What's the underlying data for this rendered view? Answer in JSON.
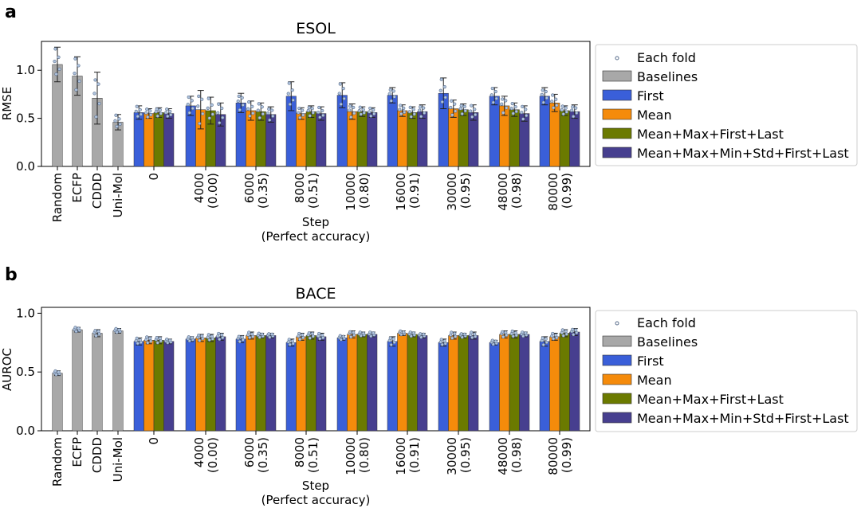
{
  "colors": {
    "baselines": "#a8a8a8",
    "first": "#3a5fd9",
    "mean": "#f58b0b",
    "mmfl": "#6b7a00",
    "all": "#473f8f",
    "dots": "#b0c4de"
  },
  "legend": {
    "each_fold": "Each fold",
    "baselines": "Baselines",
    "first": "First",
    "mean": "Mean",
    "mmfl": "Mean+Max+First+Last",
    "all": "Mean+Max+Min+Std+First+Last"
  },
  "chart_data": [
    {
      "panel": "a",
      "type": "bar",
      "title": "ESOL",
      "ylabel": "RMSE",
      "xlabel": "Step",
      "xlabel2": "(Perfect accuracy)",
      "ylim": [
        0,
        1.3
      ],
      "yticks": [
        "0.0",
        "0.5",
        "1.0"
      ],
      "ytick_values": [
        0,
        0.5,
        1.0
      ],
      "baselines": [
        {
          "label": "Random",
          "value": 1.06,
          "err": 0.18
        },
        {
          "label": "ECFP",
          "value": 0.94,
          "err": 0.2
        },
        {
          "label": "CDDD",
          "value": 0.71,
          "err": 0.27
        },
        {
          "label": "Uni-Mol",
          "value": 0.46,
          "err": 0.08
        }
      ],
      "steps": [
        "0",
        "4000",
        "6000",
        "8000",
        "10000",
        "16000",
        "30000",
        "48000",
        "80000"
      ],
      "accuracies": [
        "",
        "(0.00)",
        "(0.35)",
        "(0.51)",
        "(0.80)",
        "(0.91)",
        "(0.95)",
        "(0.98)",
        "(0.99)"
      ],
      "series": [
        {
          "name": "First",
          "values": [
            0.56,
            0.63,
            0.66,
            0.73,
            0.74,
            0.74,
            0.76,
            0.73,
            0.73
          ],
          "errors": [
            0.07,
            0.1,
            0.1,
            0.15,
            0.13,
            0.08,
            0.16,
            0.09,
            0.09
          ]
        },
        {
          "name": "Mean",
          "values": [
            0.55,
            0.59,
            0.58,
            0.55,
            0.57,
            0.58,
            0.6,
            0.63,
            0.66
          ],
          "errors": [
            0.05,
            0.2,
            0.1,
            0.06,
            0.08,
            0.06,
            0.09,
            0.1,
            0.09
          ]
        },
        {
          "name": "Mean+Max+First+Last",
          "values": [
            0.56,
            0.58,
            0.57,
            0.57,
            0.57,
            0.56,
            0.59,
            0.59,
            0.58
          ],
          "errors": [
            0.05,
            0.14,
            0.09,
            0.06,
            0.05,
            0.06,
            0.06,
            0.07,
            0.05
          ]
        },
        {
          "name": "Mean+Max+Min+Std+First+Last",
          "values": [
            0.55,
            0.54,
            0.54,
            0.55,
            0.56,
            0.57,
            0.56,
            0.55,
            0.57
          ],
          "errors": [
            0.05,
            0.12,
            0.08,
            0.07,
            0.05,
            0.07,
            0.08,
            0.08,
            0.07
          ]
        }
      ]
    },
    {
      "panel": "b",
      "type": "bar",
      "title": "BACE",
      "ylabel": "AUROC",
      "xlabel": "Step",
      "xlabel2": "(Perfect accuracy)",
      "ylim": [
        0,
        1.05
      ],
      "yticks": [
        "0.0",
        "0.5",
        "1.0"
      ],
      "ytick_values": [
        0,
        0.5,
        1.0
      ],
      "baselines": [
        {
          "label": "Random",
          "value": 0.49,
          "err": 0.02
        },
        {
          "label": "ECFP",
          "value": 0.86,
          "err": 0.02
        },
        {
          "label": "CDDD",
          "value": 0.83,
          "err": 0.03
        },
        {
          "label": "Uni-Mol",
          "value": 0.85,
          "err": 0.02
        }
      ],
      "steps": [
        "0",
        "4000",
        "6000",
        "8000",
        "10000",
        "16000",
        "30000",
        "48000",
        "80000"
      ],
      "accuracies": [
        "",
        "(0.00)",
        "(0.35)",
        "(0.51)",
        "(0.80)",
        "(0.91)",
        "(0.95)",
        "(0.98)",
        "(0.99)"
      ],
      "series": [
        {
          "name": "First",
          "values": [
            0.76,
            0.78,
            0.78,
            0.75,
            0.79,
            0.76,
            0.75,
            0.75,
            0.76
          ],
          "errors": [
            0.03,
            0.02,
            0.03,
            0.03,
            0.02,
            0.04,
            0.03,
            0.02,
            0.04
          ]
        },
        {
          "name": "Mean",
          "values": [
            0.77,
            0.79,
            0.81,
            0.8,
            0.82,
            0.83,
            0.81,
            0.82,
            0.8
          ],
          "errors": [
            0.03,
            0.03,
            0.03,
            0.03,
            0.03,
            0.02,
            0.03,
            0.03,
            0.03
          ]
        },
        {
          "name": "Mean+Max+First+Last",
          "values": [
            0.77,
            0.79,
            0.81,
            0.81,
            0.82,
            0.82,
            0.81,
            0.82,
            0.83
          ],
          "errors": [
            0.03,
            0.03,
            0.02,
            0.03,
            0.02,
            0.02,
            0.02,
            0.03,
            0.03
          ]
        },
        {
          "name": "Mean+Max+Min+Std+First+Last",
          "values": [
            0.76,
            0.8,
            0.81,
            0.8,
            0.82,
            0.81,
            0.81,
            0.82,
            0.84
          ],
          "errors": [
            0.02,
            0.03,
            0.02,
            0.03,
            0.02,
            0.02,
            0.03,
            0.02,
            0.03
          ]
        }
      ]
    }
  ]
}
